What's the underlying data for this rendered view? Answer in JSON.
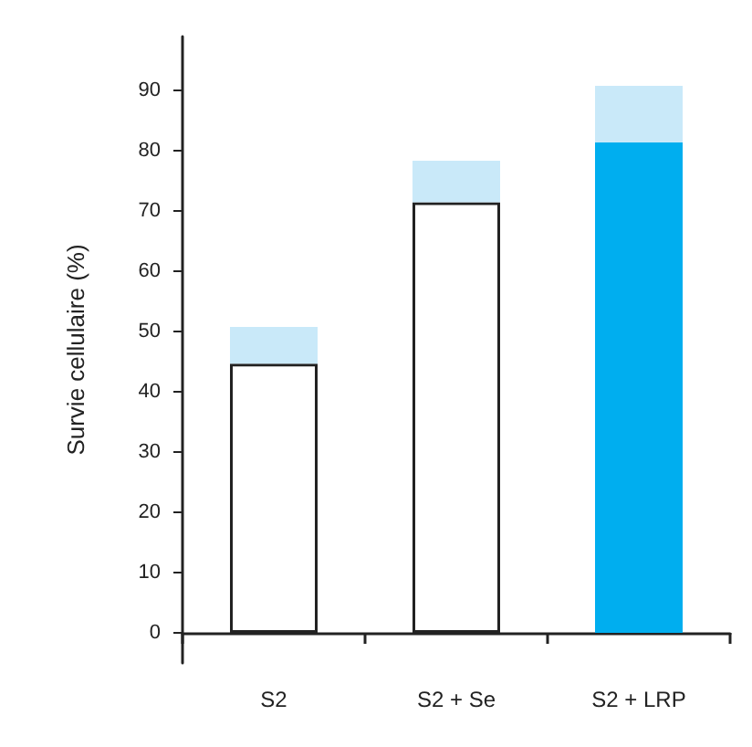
{
  "chart_data": {
    "type": "bar",
    "ylabel": "Survie cellulaire (%)",
    "categories": [
      "S2",
      "S2 + Se",
      "S2 + LRP"
    ],
    "stacked": true,
    "series": [
      {
        "colors": [
          "#ffffff",
          "#ffffff",
          "#00aeef"
        ],
        "values": [
          44.7,
          71.5,
          81.4
        ]
      },
      {
        "color": "#c9e9f9",
        "values": [
          6.1,
          6.9,
          9.4
        ]
      }
    ],
    "ylim": [
      -5,
      99
    ],
    "yticks": [
      0,
      10,
      20,
      30,
      40,
      50,
      60,
      70,
      80,
      90
    ]
  }
}
